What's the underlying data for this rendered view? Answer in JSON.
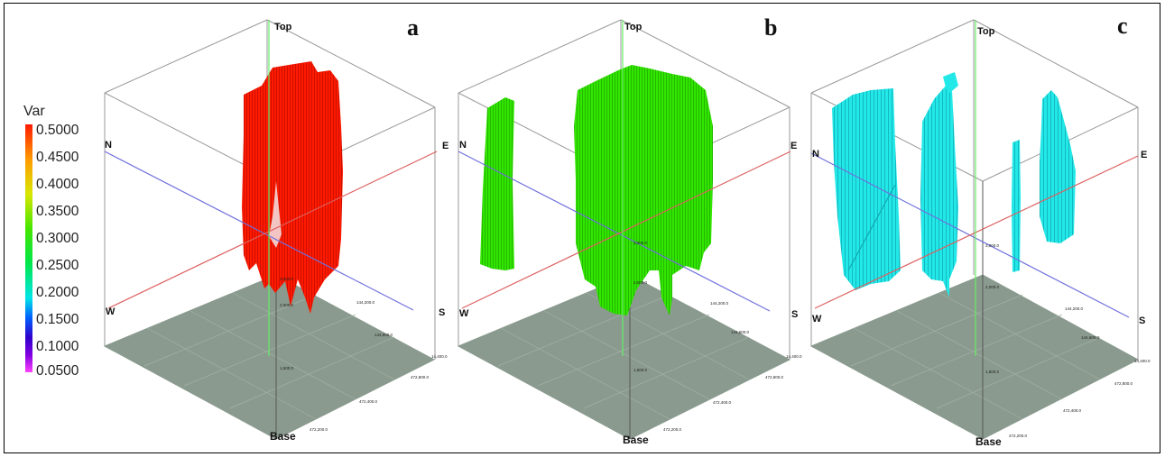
{
  "colorbar": {
    "title": "Var",
    "ticks": [
      "0.5000",
      "0.4500",
      "0.4000",
      "0.3500",
      "0.3000",
      "0.2500",
      "0.2000",
      "0.1500",
      "0.1000",
      "0.0500"
    ]
  },
  "panels": [
    {
      "letter": "a",
      "color": "#ff1a00",
      "labels": {
        "top": "Top",
        "base": "Base",
        "n": "N",
        "e": "E",
        "s": "S",
        "w": "W"
      },
      "ticks": [
        "3,000.0",
        "2,000.0",
        "1,500.0",
        "144,200.0",
        "144,600.0",
        "14,400.0",
        "472,800.0",
        "472,400.0",
        "472,200.0"
      ]
    },
    {
      "letter": "b",
      "color": "#33e600",
      "labels": {
        "top": "Top",
        "base": "Base",
        "n": "N",
        "e": "E",
        "s": "S",
        "w": "W"
      },
      "ticks": [
        "3,000.0",
        "2,000.0",
        "1,500.0",
        "144,200.0",
        "144,600.0",
        "14,400.0",
        "472,800.0",
        "472,400.0",
        "472,200.0"
      ]
    },
    {
      "letter": "c",
      "color": "#1ee6e6",
      "labels": {
        "top": "Top",
        "base": "Base",
        "n": "N",
        "e": "E",
        "s": "S",
        "w": "W"
      },
      "ticks": [
        "3,000.0",
        "2,000.0",
        "1,500.0",
        "144,200.0",
        "144,600.0",
        "14,400.0",
        "472,800.0",
        "472,400.0",
        "472,200.0"
      ]
    }
  ]
}
